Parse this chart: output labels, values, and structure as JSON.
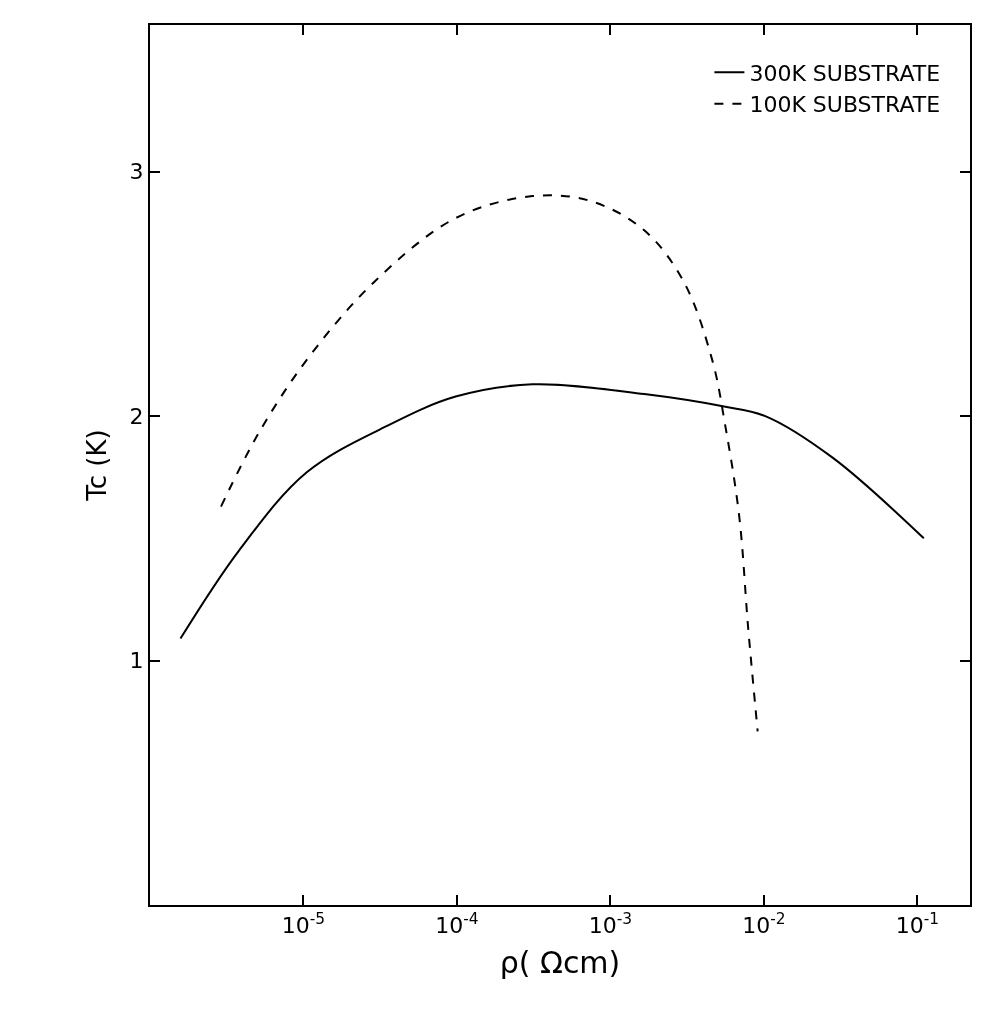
{
  "chart_data": {
    "type": "line",
    "xlabel": "ρ( Ωcm)",
    "ylabel": "Tc (K)",
    "log": "x",
    "xlim": [
      1e-06,
      0.22
    ],
    "ylim": [
      0,
      3.6
    ],
    "xticks": [
      {
        "value": 1e-05,
        "label": "10$^{-5}$"
      },
      {
        "value": 0.0001,
        "label": "10$^{-4}$"
      },
      {
        "value": 0.001,
        "label": "10$^{-3}$"
      },
      {
        "value": 0.01,
        "label": "10$^{-2}$"
      },
      {
        "value": 0.1,
        "label": "10$^{-1}$"
      }
    ],
    "yticks": [
      1,
      2,
      3
    ],
    "legend": "top right",
    "marker": "none",
    "series": [
      {
        "name": "300K SUBSTRATE",
        "color": "#000000",
        "line_style": "solid",
        "x": [
          1.58e-06,
          3.8e-06,
          1.05e-05,
          3.5e-05,
          9.8e-05,
          0.00031,
          0.00166,
          0.0054,
          0.0102,
          0.028,
          0.11
        ],
        "values": [
          1.09,
          1.45,
          1.77,
          1.96,
          2.08,
          2.13,
          2.09,
          2.04,
          2.0,
          1.83,
          1.5
        ]
      },
      {
        "name": "100K SUBSTRATE",
        "color": "#000000",
        "line_style": "dashed",
        "x": [
          2.9e-06,
          5.1e-06,
          1.05e-05,
          2.9e-05,
          9.8e-05,
          0.00031,
          0.00074,
          0.00166,
          0.003,
          0.0046,
          0.0056,
          0.0069,
          0.0079,
          0.0091
        ],
        "values": [
          1.63,
          1.93,
          2.23,
          2.55,
          2.81,
          2.9,
          2.88,
          2.76,
          2.55,
          2.23,
          1.96,
          1.59,
          1.13,
          0.71
        ]
      }
    ]
  }
}
